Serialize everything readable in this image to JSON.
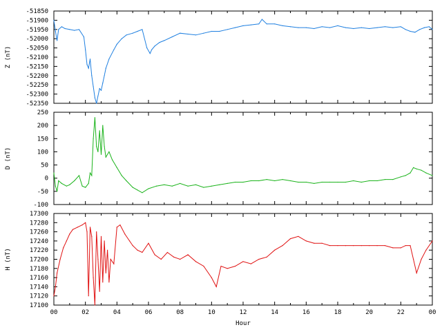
{
  "chart_data": [
    {
      "type": "line",
      "panel": "Z",
      "ylabel": "Z (nT)",
      "ylim": [
        -52350,
        -51850
      ],
      "y_ticks": [
        -51850,
        -51900,
        -51950,
        -52000,
        -52050,
        -52100,
        -52150,
        -52200,
        -52250,
        -52300,
        -52350
      ],
      "xlim": [
        0,
        24
      ],
      "color": "#1e7fe0",
      "series": [
        {
          "x": [
            0.0,
            0.1,
            0.2,
            0.3,
            0.5,
            0.7,
            1.0,
            1.3,
            1.6,
            1.9,
            2.0,
            2.1,
            2.2,
            2.3,
            2.4,
            2.5,
            2.6,
            2.7,
            2.8,
            2.9,
            3.0,
            3.1,
            3.2,
            3.3,
            3.5,
            3.8,
            4.0,
            4.3,
            4.6,
            5.0,
            5.3,
            5.6,
            5.9,
            6.1,
            6.2,
            6.4,
            6.7,
            7.0,
            7.5,
            8.0,
            8.5,
            9.0,
            9.5,
            10.0,
            10.5,
            11.0,
            11.5,
            12.0,
            12.5,
            13.0,
            13.2,
            13.5,
            14.0,
            14.5,
            15.0,
            15.5,
            16.0,
            16.5,
            17.0,
            17.5,
            18.0,
            18.5,
            19.0,
            19.5,
            20.0,
            20.5,
            21.0,
            21.5,
            22.0,
            22.3,
            22.6,
            22.9,
            23.2,
            23.5,
            23.8,
            24.0
          ],
          "y": [
            -51900,
            -51960,
            -52010,
            -51950,
            -51935,
            -51945,
            -51950,
            -51955,
            -51950,
            -51990,
            -52060,
            -52140,
            -52160,
            -52110,
            -52200,
            -52260,
            -52320,
            -52350,
            -52310,
            -52270,
            -52280,
            -52240,
            -52200,
            -52160,
            -52110,
            -52060,
            -52030,
            -52000,
            -51980,
            -51970,
            -51960,
            -51950,
            -52050,
            -52080,
            -52060,
            -52040,
            -52020,
            -52010,
            -51990,
            -51970,
            -51975,
            -51980,
            -51970,
            -51960,
            -51960,
            -51950,
            -51940,
            -51930,
            -51925,
            -51920,
            -51895,
            -51920,
            -51920,
            -51930,
            -51935,
            -51940,
            -51940,
            -51945,
            -51935,
            -51940,
            -51930,
            -51940,
            -51945,
            -51940,
            -51945,
            -51940,
            -51935,
            -51940,
            -51935,
            -51950,
            -51960,
            -51965,
            -51950,
            -51940,
            -51935,
            -51950
          ]
        }
      ]
    },
    {
      "type": "line",
      "panel": "D",
      "ylabel": "D (nT)",
      "ylim": [
        -100,
        250
      ],
      "y_ticks": [
        250,
        200,
        150,
        100,
        50,
        0,
        -50,
        -100
      ],
      "xlim": [
        0,
        24
      ],
      "color": "#1ab31a",
      "series": [
        {
          "x": [
            0.0,
            0.1,
            0.2,
            0.3,
            0.5,
            0.8,
            1.0,
            1.3,
            1.6,
            1.8,
            2.0,
            2.2,
            2.3,
            2.4,
            2.5,
            2.6,
            2.7,
            2.8,
            2.9,
            3.0,
            3.1,
            3.2,
            3.3,
            3.5,
            3.7,
            4.0,
            4.3,
            4.6,
            5.0,
            5.3,
            5.6,
            6.0,
            6.5,
            7.0,
            7.5,
            8.0,
            8.5,
            9.0,
            9.5,
            10.0,
            10.5,
            11.0,
            11.5,
            12.0,
            12.5,
            13.0,
            13.5,
            14.0,
            14.5,
            15.0,
            15.5,
            16.0,
            16.5,
            17.0,
            17.5,
            18.0,
            18.5,
            19.0,
            19.5,
            20.0,
            20.5,
            21.0,
            21.5,
            22.0,
            22.3,
            22.6,
            22.8,
            23.0,
            23.3,
            23.6,
            24.0
          ],
          "y": [
            20,
            -30,
            -50,
            -10,
            -20,
            -30,
            -25,
            -10,
            10,
            -30,
            -35,
            -20,
            20,
            10,
            150,
            230,
            120,
            100,
            180,
            90,
            200,
            120,
            80,
            100,
            70,
            40,
            10,
            -10,
            -35,
            -45,
            -55,
            -40,
            -30,
            -25,
            -30,
            -20,
            -30,
            -25,
            -35,
            -30,
            -25,
            -20,
            -15,
            -15,
            -10,
            -10,
            -5,
            -10,
            -5,
            -10,
            -15,
            -15,
            -20,
            -15,
            -15,
            -15,
            -15,
            -10,
            -15,
            -10,
            -10,
            -5,
            -5,
            5,
            10,
            20,
            40,
            35,
            30,
            20,
            10
          ]
        }
      ]
    },
    {
      "type": "line",
      "panel": "H",
      "ylabel": "H (nT)",
      "ylim": [
        17100,
        17300
      ],
      "y_ticks": [
        17300,
        17280,
        17260,
        17240,
        17220,
        17200,
        17180,
        17160,
        17140,
        17120,
        17100
      ],
      "xlim": [
        0,
        24
      ],
      "color": "#e01010",
      "series": [
        {
          "x": [
            0.0,
            0.1,
            0.2,
            0.4,
            0.6,
            0.8,
            1.0,
            1.2,
            1.5,
            1.8,
            2.0,
            2.1,
            2.2,
            2.3,
            2.4,
            2.5,
            2.6,
            2.7,
            2.8,
            2.9,
            3.0,
            3.1,
            3.2,
            3.3,
            3.4,
            3.5,
            3.6,
            3.8,
            4.0,
            4.2,
            4.5,
            4.8,
            5.0,
            5.3,
            5.6,
            6.0,
            6.4,
            6.8,
            7.2,
            7.6,
            8.0,
            8.5,
            9.0,
            9.5,
            10.0,
            10.3,
            10.6,
            11.0,
            11.5,
            12.0,
            12.5,
            13.0,
            13.5,
            14.0,
            14.5,
            15.0,
            15.5,
            16.0,
            16.5,
            17.0,
            17.5,
            18.0,
            18.5,
            19.0,
            19.5,
            20.0,
            20.5,
            21.0,
            21.5,
            22.0,
            22.3,
            22.6,
            22.8,
            23.0,
            23.3,
            23.6,
            24.0
          ],
          "y": [
            17120,
            17140,
            17170,
            17200,
            17225,
            17240,
            17255,
            17265,
            17270,
            17275,
            17280,
            17260,
            17120,
            17270,
            17250,
            17160,
            17100,
            17260,
            17200,
            17130,
            17250,
            17150,
            17240,
            17170,
            17220,
            17150,
            17200,
            17190,
            17270,
            17275,
            17255,
            17240,
            17230,
            17220,
            17215,
            17235,
            17210,
            17200,
            17215,
            17205,
            17200,
            17210,
            17195,
            17185,
            17160,
            17140,
            17185,
            17180,
            17185,
            17195,
            17190,
            17200,
            17205,
            17220,
            17230,
            17245,
            17250,
            17240,
            17235,
            17235,
            17230,
            17230,
            17230,
            17230,
            17230,
            17230,
            17230,
            17230,
            17225,
            17225,
            17230,
            17230,
            17200,
            17170,
            17200,
            17220,
            17240
          ]
        }
      ]
    }
  ],
  "x_axis": {
    "xlabel": "Hour",
    "tick_labels": [
      "00",
      "02",
      "04",
      "06",
      "08",
      "10",
      "12",
      "14",
      "16",
      "18",
      "20",
      "22",
      "00"
    ]
  }
}
